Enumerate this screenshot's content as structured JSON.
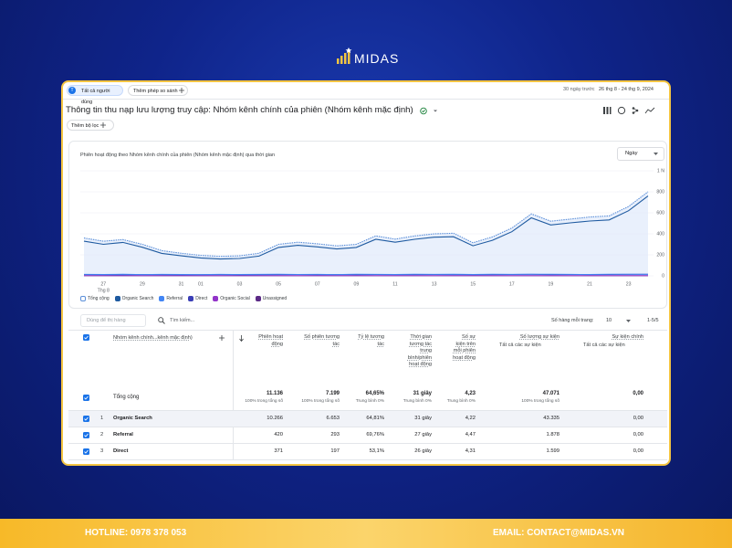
{
  "brand": "MIDAS",
  "header": {
    "audience_initial": "T",
    "audience": "Tất cả người dùng",
    "compare": "Thêm phép so sánh",
    "date_preset": "30 ngày trước",
    "date_range": "26 thg 8 - 24 thg 9, 2024"
  },
  "report": {
    "title": "Thông tin thu nạp lưu lượng truy cập: Nhóm kênh chính của phiên (Nhóm kênh mặc định)",
    "add_filter": "Thêm bộ lọc"
  },
  "chart_data": {
    "type": "line",
    "title": "Phiên hoạt động theo Nhóm kênh chính của phiên (Nhóm kênh mặc định) qua thời gian",
    "granularity": "Ngày",
    "categories": [
      null,
      "27",
      null,
      "29",
      null,
      "31",
      "01",
      null,
      "03",
      null,
      "05",
      null,
      "07",
      null,
      "09",
      null,
      "11",
      null,
      "13",
      null,
      "15",
      null,
      "17",
      null,
      "19",
      null,
      "21",
      null,
      "23",
      null
    ],
    "x_sublabel": "Thg 8",
    "ylim": [
      0,
      1000
    ],
    "yticks": [
      0,
      200,
      400,
      600,
      800,
      {
        "value": 1000,
        "label": "1 N"
      }
    ],
    "series": [
      {
        "name": "Tổng cộng",
        "color": "#5b8fd9",
        "values": [
          360,
          330,
          345,
          300,
          240,
          215,
          195,
          185,
          190,
          215,
          300,
          320,
          305,
          285,
          300,
          380,
          350,
          380,
          400,
          405,
          315,
          370,
          455,
          590,
          520,
          540,
          560,
          570,
          660,
          800
        ]
      },
      {
        "name": "Organic Search",
        "color": "#1e5aa0",
        "values": [
          330,
          300,
          318,
          272,
          214,
          190,
          170,
          160,
          165,
          188,
          270,
          290,
          276,
          256,
          270,
          348,
          320,
          348,
          368,
          372,
          286,
          338,
          420,
          552,
          484,
          504,
          522,
          532,
          620,
          760
        ]
      },
      {
        "name": "Referral",
        "color": "#4285f4",
        "values": [
          14,
          13,
          15,
          12,
          14,
          13,
          12,
          14,
          13,
          14,
          15,
          13,
          14,
          12,
          15,
          14,
          13,
          15,
          14,
          16,
          13,
          15,
          14,
          16,
          15,
          14,
          13,
          15,
          16,
          14
        ]
      },
      {
        "name": "Direct",
        "color": "#3b3fb6",
        "values": [
          12,
          11,
          10,
          12,
          11,
          10,
          11,
          12,
          10,
          11,
          12,
          13,
          11,
          12,
          11,
          13,
          12,
          12,
          13,
          12,
          11,
          12,
          13,
          14,
          12,
          13,
          12,
          13,
          14,
          15
        ]
      },
      {
        "name": "Organic Social",
        "color": "#9334c9",
        "values": [
          2,
          2,
          3,
          2,
          2,
          2,
          3,
          2,
          2,
          2,
          3,
          2,
          2,
          3,
          2,
          2,
          2,
          3,
          2,
          2,
          2,
          3,
          2,
          2,
          3,
          2,
          2,
          2,
          3,
          2
        ]
      },
      {
        "name": "Unassigned",
        "color": "#5b2a86",
        "values": [
          1,
          1,
          1,
          1,
          1,
          1,
          1,
          1,
          1,
          1,
          1,
          1,
          1,
          1,
          1,
          1,
          1,
          1,
          1,
          1,
          1,
          1,
          1,
          1,
          1,
          1,
          1,
          1,
          1,
          1
        ]
      }
    ]
  },
  "table": {
    "rows_placeholder": "Dùng để thị hàng",
    "search": "Tìm kiếm...",
    "rows_per_page_label": "Số hàng mỗi trang:",
    "rows_per_page": "10",
    "pagination": "1-5/5",
    "dimension": "Nhóm kênh chính...kênh mặc định)",
    "columns": [
      {
        "name": "Phiên hoạt động"
      },
      {
        "name": "Số phiên tương tác"
      },
      {
        "name": "Tỷ lệ tương tác"
      },
      {
        "name": "Thời gian tương tác trung bình/phiên hoạt động"
      },
      {
        "name": "Số sự kiện trên mỗi phiên hoạt động"
      },
      {
        "name": "Số lượng sự kiện",
        "filter": "Tất cả các sự kiện"
      },
      {
        "name": "Sự kiện chính",
        "filter": "Tất cả các sự kiện"
      }
    ],
    "total": {
      "label": "Tổng cộng",
      "values": [
        "11.136",
        "7.199",
        "64,65%",
        "31 giây",
        "4,23",
        "47.071",
        "0,00"
      ],
      "notes": [
        "100% trong tổng số",
        "100% trong tổng số",
        "Trung bình 0%",
        "Trung bình 0%",
        "Trung bình 0%",
        "100% trong tổng số",
        null
      ]
    },
    "rows": [
      {
        "index": "1",
        "name": "Organic Search",
        "values": [
          "10.266",
          "6.653",
          "64,81%",
          "31 giây",
          "4,22",
          "43.335",
          "0,00"
        ]
      },
      {
        "index": "2",
        "name": "Referral",
        "values": [
          "420",
          "293",
          "69,76%",
          "27 giây",
          "4,47",
          "1.878",
          "0,00"
        ]
      },
      {
        "index": "3",
        "name": "Direct",
        "values": [
          "371",
          "197",
          "53,1%",
          "26 giây",
          "4,31",
          "1.599",
          "0,00"
        ]
      }
    ]
  },
  "footer": {
    "hotline": "HOTLINE: 0978 378 053",
    "email": "EMAIL: CONTACT@MIDAS.VN"
  }
}
